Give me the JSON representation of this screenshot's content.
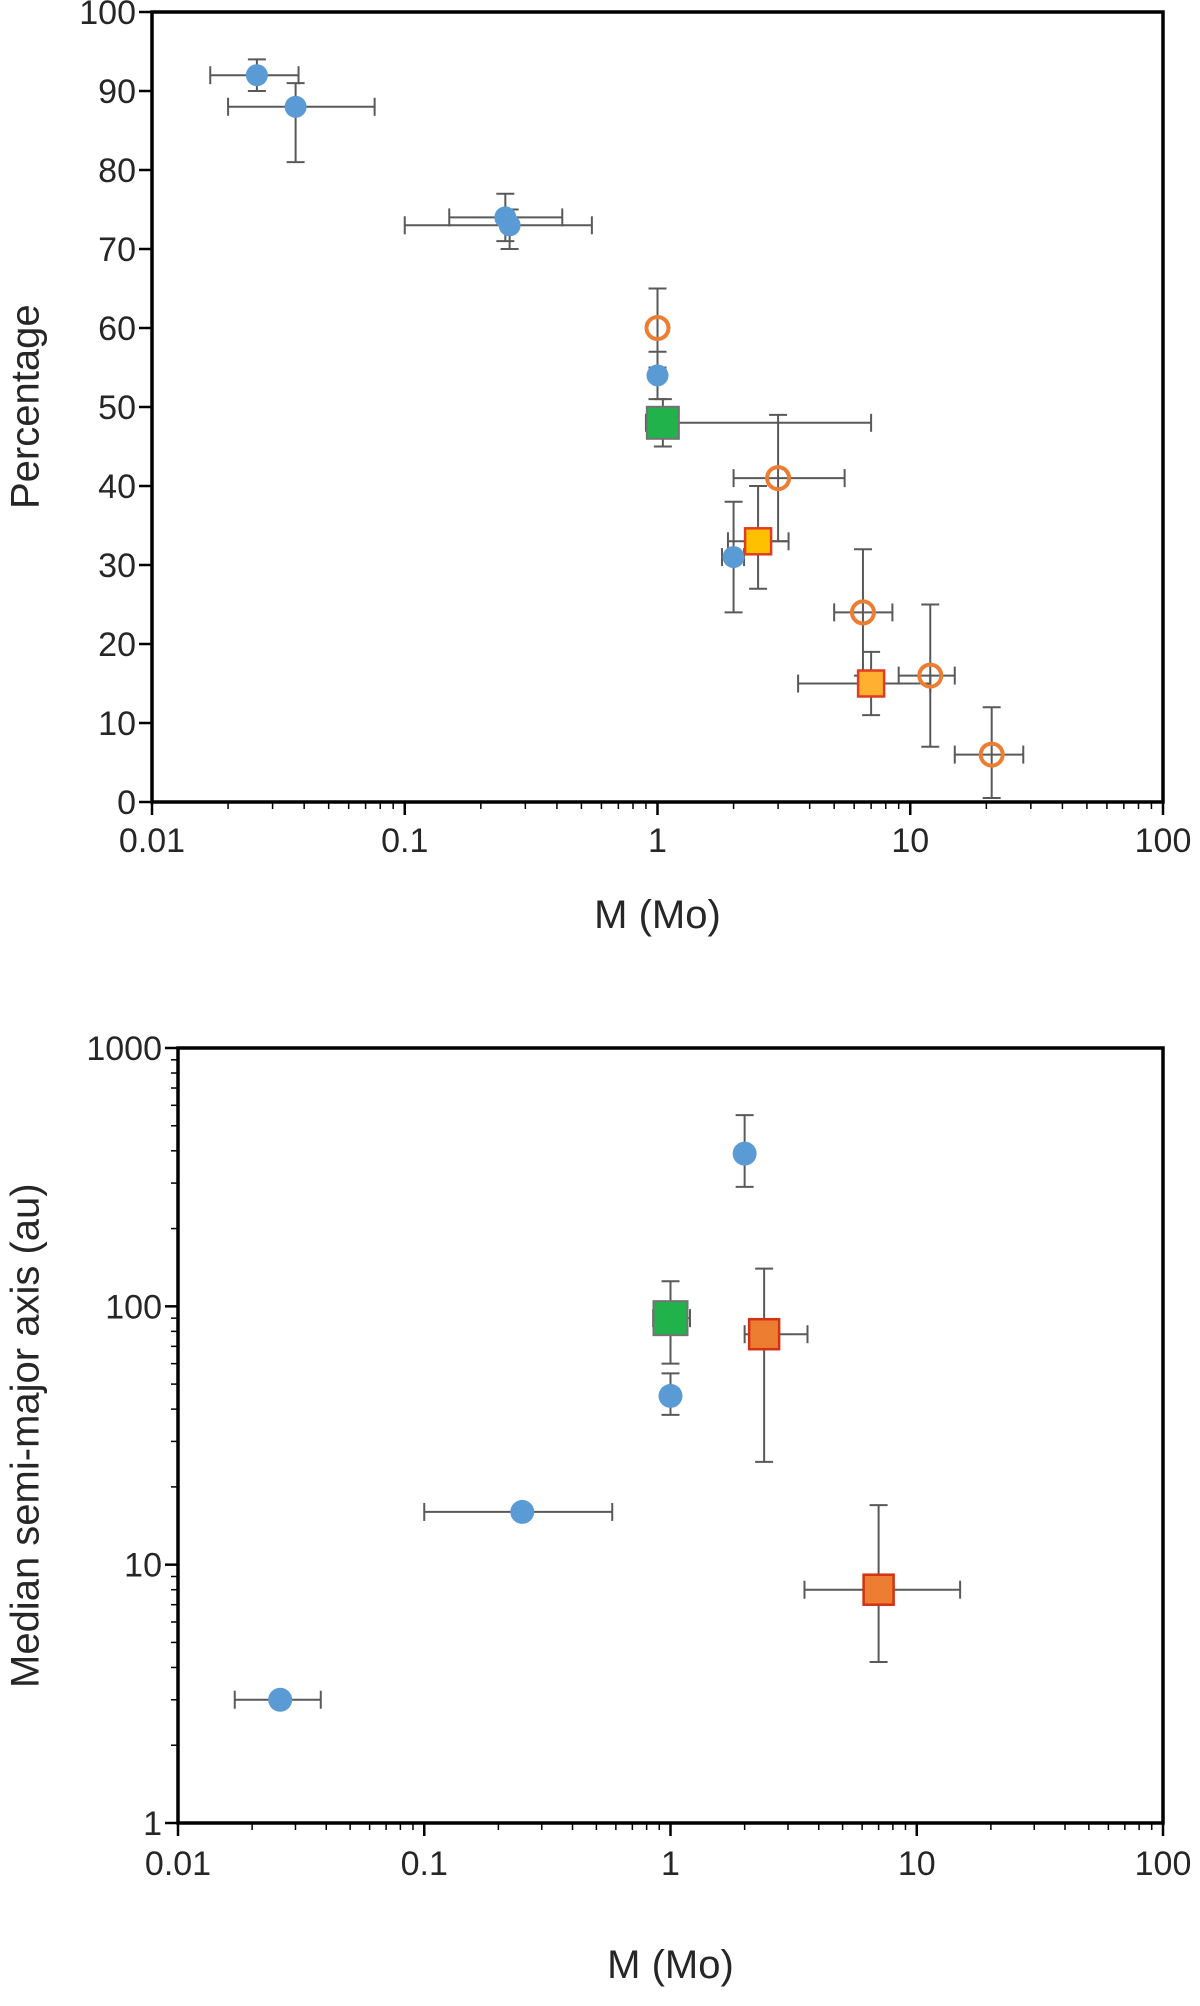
{
  "page": {
    "background": "#ffffff"
  },
  "chart_data": [
    {
      "type": "scatter",
      "title": "",
      "xlabel": "M (Mo)",
      "ylabel": "Percentage",
      "x_scale": "log",
      "y_scale": "linear",
      "xlim": [
        0.01,
        100
      ],
      "ylim": [
        0,
        100
      ],
      "x_ticks": [
        0.01,
        0.1,
        1,
        10,
        100
      ],
      "x_tick_labels": [
        "0.01",
        "0.1",
        "1",
        "10",
        "100"
      ],
      "y_ticks": [
        0,
        10,
        20,
        30,
        40,
        50,
        60,
        70,
        80,
        90,
        100
      ],
      "y_tick_labels": [
        "0",
        "10",
        "20",
        "30",
        "40",
        "50",
        "60",
        "70",
        "80",
        "90",
        "100"
      ],
      "grid": false,
      "legend": "none",
      "error_bar_color": "#595959",
      "series": [
        {
          "name": "blue-circles",
          "marker": "circle",
          "fill": "#5B9BD5",
          "size": 11,
          "points": [
            {
              "x": 0.026,
              "x_lo": 0.017,
              "x_hi": 0.038,
              "y": 92,
              "y_lo": 90,
              "y_hi": 94
            },
            {
              "x": 0.037,
              "x_lo": 0.02,
              "x_hi": 0.076,
              "y": 88,
              "y_lo": 81,
              "y_hi": 91
            },
            {
              "x": 0.25,
              "x_lo": 0.15,
              "x_hi": 0.42,
              "y": 74,
              "y_lo": 71,
              "y_hi": 77
            },
            {
              "x": 0.26,
              "x_lo": 0.1,
              "x_hi": 0.55,
              "y": 73,
              "y_lo": 70,
              "y_hi": 75
            },
            {
              "x": 1.0,
              "y": 54,
              "y_lo": 51,
              "y_hi": 57
            },
            {
              "x": 2.0,
              "x_lo": 1.8,
              "x_hi": 2.2,
              "y": 31,
              "y_lo": 24,
              "y_hi": 38
            }
          ]
        },
        {
          "name": "orange-open-circles",
          "marker": "open-circle",
          "color": "#ED7D31",
          "size": 11,
          "stroke_width": 4,
          "points": [
            {
              "x": 1.0,
              "y": 60,
              "y_lo": 55,
              "y_hi": 65
            },
            {
              "x": 3.0,
              "x_lo": 2.0,
              "x_hi": 5.5,
              "y": 41,
              "y_lo": 33,
              "y_hi": 49
            },
            {
              "x": 6.5,
              "x_lo": 5.0,
              "x_hi": 8.5,
              "y": 24,
              "y_lo": 16,
              "y_hi": 32
            },
            {
              "x": 12.0,
              "x_lo": 9.0,
              "x_hi": 15.0,
              "y": 16,
              "y_lo": 7,
              "y_hi": 25
            },
            {
              "x": 21.0,
              "x_lo": 15.0,
              "x_hi": 28.0,
              "y": 6,
              "y_lo": 0.5,
              "y_hi": 12
            }
          ]
        },
        {
          "name": "green-square",
          "marker": "square",
          "fill": "#21B24C",
          "stroke": "#737373",
          "stroke_width": 2,
          "size": 16,
          "points": [
            {
              "x": 1.05,
              "x_lo": 0.9,
              "x_hi": 7.0,
              "y": 48,
              "y_lo": 45,
              "y_hi": 51
            }
          ]
        },
        {
          "name": "gold-square",
          "marker": "square",
          "fill": "#FFC000",
          "stroke": "#E03B24",
          "stroke_width": 2.5,
          "size": 13,
          "points": [
            {
              "x": 2.5,
              "x_lo": 1.9,
              "x_hi": 3.3,
              "y": 33,
              "y_lo": 27,
              "y_hi": 40
            }
          ]
        },
        {
          "name": "orange-square",
          "marker": "square",
          "fill": "#FFB02E",
          "stroke": "#E03B24",
          "stroke_width": 2.5,
          "size": 13,
          "points": [
            {
              "x": 7.0,
              "x_lo": 3.6,
              "x_hi": 12.0,
              "y": 15,
              "y_lo": 11,
              "y_hi": 19
            }
          ]
        }
      ]
    },
    {
      "type": "scatter",
      "title": "",
      "xlabel": "M (Mo)",
      "ylabel": "Median semi-major axis (au)",
      "x_scale": "log",
      "y_scale": "log",
      "xlim": [
        0.01,
        100
      ],
      "ylim": [
        1,
        1000
      ],
      "x_ticks": [
        0.01,
        0.1,
        1,
        10,
        100
      ],
      "x_tick_labels": [
        "0.01",
        "0.1",
        "1",
        "10",
        "100"
      ],
      "y_ticks": [
        1,
        10,
        100,
        1000
      ],
      "y_tick_labels": [
        "1",
        "10",
        "100",
        "1000"
      ],
      "grid": false,
      "legend": "none",
      "error_bar_color": "#595959",
      "series": [
        {
          "name": "blue-circles",
          "marker": "circle",
          "fill": "#5B9BD5",
          "size": 12,
          "points": [
            {
              "x": 0.026,
              "x_lo": 0.017,
              "x_hi": 0.038,
              "y": 3
            },
            {
              "x": 0.25,
              "x_lo": 0.1,
              "x_hi": 0.58,
              "y": 16
            },
            {
              "x": 1.0,
              "y": 45,
              "y_lo": 38,
              "y_hi": 55
            },
            {
              "x": 2.0,
              "y": 390,
              "y_lo": 290,
              "y_hi": 550
            }
          ]
        },
        {
          "name": "green-square",
          "marker": "square",
          "fill": "#21B24C",
          "stroke": "#737373",
          "stroke_width": 2,
          "size": 17,
          "points": [
            {
              "x": 1.0,
              "x_lo": 0.85,
              "x_hi": 1.2,
              "y": 90,
              "y_lo": 60,
              "y_hi": 125
            }
          ]
        },
        {
          "name": "orange-squares",
          "marker": "square",
          "fill": "#ED7D31",
          "stroke": "#D33115",
          "stroke_width": 2.5,
          "size": 15,
          "points": [
            {
              "x": 2.4,
              "x_lo": 2.0,
              "x_hi": 3.6,
              "y": 78,
              "y_lo": 25,
              "y_hi": 140
            },
            {
              "x": 7.0,
              "x_lo": 3.5,
              "x_hi": 15.0,
              "y": 8,
              "y_lo": 4.2,
              "y_hi": 17
            }
          ]
        }
      ]
    }
  ]
}
